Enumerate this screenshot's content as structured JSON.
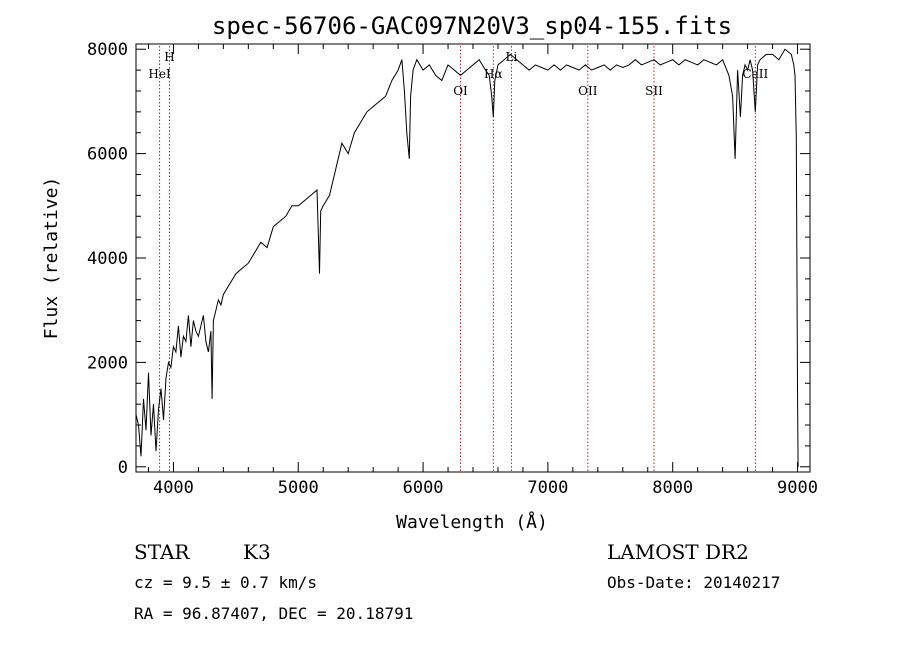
{
  "chart_data": {
    "type": "line",
    "title": "spec-56706-GAC097N20V3_sp04-155.fits",
    "xlabel": "Wavelength (Å)",
    "ylabel": "Flux (relative)",
    "xlim": [
      3700,
      9100
    ],
    "ylim": [
      -100,
      8100
    ],
    "xticks": [
      4000,
      5000,
      6000,
      7000,
      8000,
      9000
    ],
    "yticks": [
      0,
      2000,
      4000,
      6000,
      8000
    ],
    "series": [
      {
        "x": [
          3700,
          3720,
          3740,
          3760,
          3780,
          3800,
          3820,
          3840,
          3860,
          3880,
          3900,
          3920,
          3940,
          3960,
          3980,
          4000,
          4020,
          4040,
          4060,
          4080,
          4100,
          4120,
          4140,
          4160,
          4180,
          4200,
          4220,
          4240,
          4260,
          4280,
          4300,
          4310,
          4320,
          4340,
          4360,
          4380,
          4400,
          4450,
          4500,
          4550,
          4600,
          4650,
          4700,
          4750,
          4800,
          4850,
          4900,
          4950,
          5000,
          5050,
          5100,
          5150,
          5170,
          5180,
          5200,
          5250,
          5300,
          5350,
          5400,
          5450,
          5500,
          5550,
          5600,
          5650,
          5700,
          5750,
          5800,
          5830,
          5850,
          5870,
          5890,
          5900,
          5920,
          5950,
          6000,
          6050,
          6100,
          6150,
          6200,
          6250,
          6300,
          6350,
          6400,
          6450,
          6500,
          6530,
          6550,
          6563,
          6575,
          6600,
          6650,
          6700,
          6750,
          6800,
          6850,
          6900,
          6950,
          7000,
          7050,
          7100,
          7150,
          7200,
          7250,
          7300,
          7350,
          7400,
          7450,
          7500,
          7550,
          7600,
          7650,
          7700,
          7750,
          7800,
          7850,
          7900,
          7950,
          8000,
          8050,
          8100,
          8150,
          8200,
          8250,
          8300,
          8350,
          8400,
          8450,
          8480,
          8500,
          8520,
          8542,
          8560,
          8580,
          8600,
          8620,
          8640,
          8662,
          8680,
          8700,
          8750,
          8800,
          8850,
          8900,
          8950,
          8970,
          8980,
          8990,
          9000,
          9005
        ],
        "y": [
          1000,
          800,
          200,
          1300,
          700,
          1800,
          600,
          1200,
          300,
          1100,
          1500,
          900,
          1700,
          2000,
          1900,
          2300,
          2200,
          2700,
          2100,
          2500,
          2400,
          2900,
          2300,
          2800,
          2600,
          2500,
          2700,
          2900,
          2400,
          2200,
          2600,
          1300,
          2800,
          3000,
          3200,
          3100,
          3300,
          3500,
          3700,
          3800,
          3900,
          4100,
          4300,
          4200,
          4600,
          4700,
          4800,
          5000,
          5000,
          5100,
          5200,
          5300,
          3700,
          4900,
          5000,
          5200,
          5700,
          6200,
          6000,
          6400,
          6600,
          6800,
          6900,
          7000,
          7100,
          7400,
          7600,
          7800,
          7200,
          6400,
          5900,
          7100,
          7600,
          7800,
          7600,
          7700,
          7500,
          7400,
          7700,
          7600,
          7500,
          7600,
          7700,
          7800,
          7600,
          7500,
          7100,
          6700,
          7400,
          7700,
          7800,
          7900,
          7800,
          7700,
          7600,
          7700,
          7650,
          7600,
          7700,
          7600,
          7700,
          7650,
          7600,
          7700,
          7600,
          7650,
          7700,
          7600,
          7700,
          7650,
          7700,
          7800,
          7700,
          7750,
          7800,
          7700,
          7750,
          7800,
          7700,
          7800,
          7750,
          7700,
          7800,
          7750,
          7700,
          7800,
          7500,
          7100,
          5900,
          7600,
          6700,
          7500,
          7700,
          7600,
          7800,
          7600,
          6800,
          7700,
          7800,
          7900,
          7900,
          7800,
          8000,
          7900,
          7700,
          7500,
          6300,
          1500,
          0
        ]
      }
    ],
    "line_markers": [
      {
        "label": "HeI",
        "x": 3889
      },
      {
        "label": "H",
        "x": 3968
      },
      {
        "label": "OI",
        "x": 6300
      },
      {
        "label": "Hα",
        "x": 6563
      },
      {
        "label": "Li",
        "x": 6708
      },
      {
        "label": "OII",
        "x": 7320
      },
      {
        "label": "SII",
        "x": 7850
      },
      {
        "label": "CaII",
        "x": 8662
      }
    ]
  },
  "info": {
    "class": "STAR",
    "subclass": "K3",
    "cz": "cz = 9.5 ± 0.7 km/s",
    "coords": "RA =  96.87407, DEC =  20.18791",
    "survey": "LAMOST DR2",
    "obs_date": "Obs-Date: 20140217"
  },
  "colors": {
    "marker_line": "#b22222",
    "spectrum": "#000000"
  }
}
